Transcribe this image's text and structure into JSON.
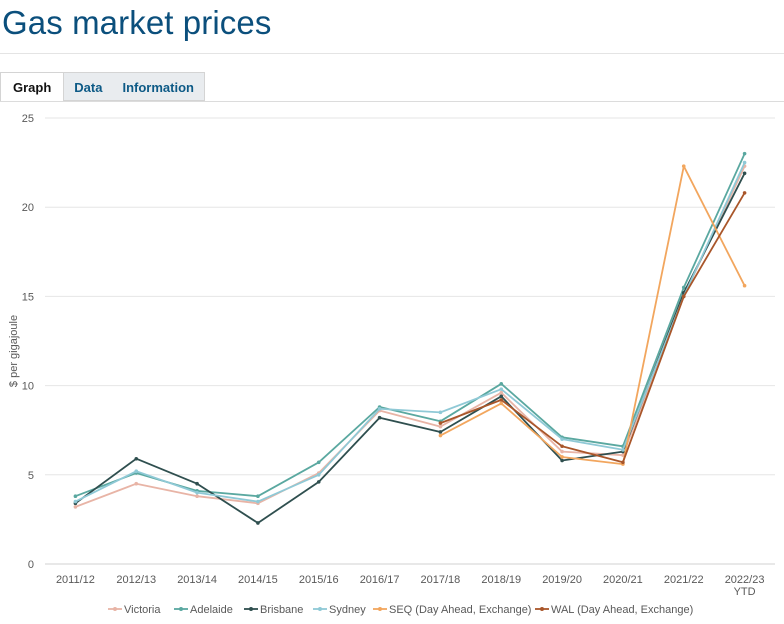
{
  "page": {
    "title": "Gas market prices"
  },
  "tabs": [
    {
      "label": "Graph",
      "active": true
    },
    {
      "label": "Data",
      "active": false
    },
    {
      "label": "Information",
      "active": false
    }
  ],
  "colors": {
    "title": "#0b4f7c",
    "tab_link": "#0d5a86",
    "gridline": "#e6e6e6"
  },
  "chart_data": {
    "type": "line",
    "title": "",
    "xlabel": "",
    "ylabel": "$ per gigajoule",
    "ylim": [
      0,
      25
    ],
    "yticks": [
      0,
      5,
      10,
      15,
      20,
      25
    ],
    "grid": true,
    "legend_position": "bottom",
    "categories": [
      "2011/12",
      "2012/13",
      "2013/14",
      "2014/15",
      "2015/16",
      "2016/17",
      "2017/18",
      "2018/19",
      "2019/20",
      "2020/21",
      "2021/22",
      "2022/23 YTD"
    ],
    "category_lines": [
      [
        "2011/12"
      ],
      [
        "2012/13"
      ],
      [
        "2013/14"
      ],
      [
        "2014/15"
      ],
      [
        "2015/16"
      ],
      [
        "2016/17"
      ],
      [
        "2017/18"
      ],
      [
        "2018/19"
      ],
      [
        "2019/20"
      ],
      [
        "2020/21"
      ],
      [
        "2021/22"
      ],
      [
        "2022/23",
        "YTD"
      ]
    ],
    "series": [
      {
        "name": "Victoria",
        "color": "#e8b4a6",
        "values": [
          3.2,
          4.5,
          3.8,
          3.4,
          5.1,
          8.6,
          7.7,
          9.6,
          6.3,
          6.1,
          15.0,
          22.3
        ]
      },
      {
        "name": "Adelaide",
        "color": "#5aa8a0",
        "values": [
          3.8,
          5.1,
          4.1,
          3.8,
          5.7,
          8.8,
          8.0,
          10.1,
          7.1,
          6.6,
          15.5,
          23.0
        ]
      },
      {
        "name": "Brisbane",
        "color": "#2f4f4f",
        "values": [
          3.4,
          5.9,
          4.5,
          2.3,
          4.6,
          8.2,
          7.4,
          9.4,
          5.8,
          6.3,
          15.2,
          21.9
        ]
      },
      {
        "name": "Sydney",
        "color": "#8fc9d6",
        "values": [
          3.5,
          5.2,
          4.0,
          3.5,
          5.0,
          8.7,
          8.5,
          9.8,
          7.0,
          6.4,
          15.0,
          22.5
        ]
      },
      {
        "name": "SEQ (Day Ahead, Exchange)",
        "color": "#f2a65e",
        "values": [
          null,
          null,
          null,
          null,
          null,
          null,
          7.2,
          9.0,
          6.0,
          5.6,
          22.3,
          15.6
        ]
      },
      {
        "name": "WAL (Day Ahead, Exchange)",
        "color": "#a9562a",
        "values": [
          null,
          null,
          null,
          null,
          null,
          null,
          7.9,
          9.2,
          6.6,
          5.7,
          15.0,
          20.8
        ]
      }
    ]
  }
}
